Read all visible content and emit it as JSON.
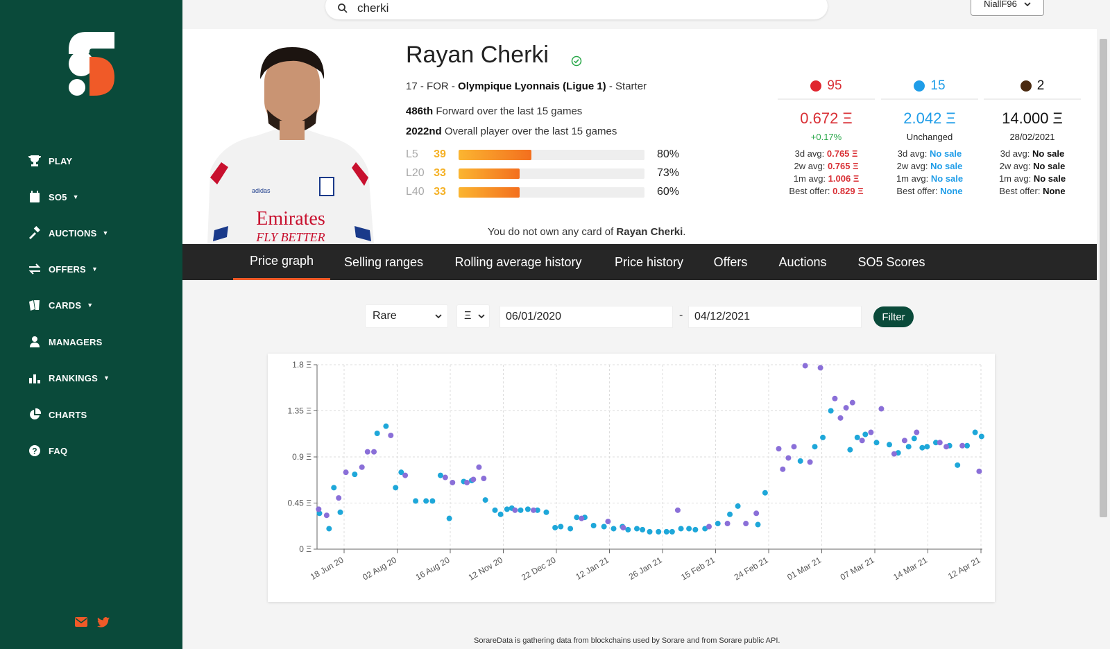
{
  "sidebar": {
    "items": [
      {
        "label": "PLAY",
        "icon": "trophy-icon",
        "has_caret": false
      },
      {
        "label": "SO5",
        "icon": "calendar-icon",
        "has_caret": true
      },
      {
        "label": "AUCTIONS",
        "icon": "gavel-icon",
        "has_caret": true
      },
      {
        "label": "OFFERS",
        "icon": "swap-icon",
        "has_caret": true
      },
      {
        "label": "CARDS",
        "icon": "cards-icon",
        "has_caret": true
      },
      {
        "label": "MANAGERS",
        "icon": "user-icon",
        "has_caret": false
      },
      {
        "label": "RANKINGS",
        "icon": "bar-chart-icon",
        "has_caret": true
      },
      {
        "label": "CHARTS",
        "icon": "pie-chart-icon",
        "has_caret": false
      },
      {
        "label": "FAQ",
        "icon": "question-icon",
        "has_caret": false
      }
    ],
    "brand_colors": {
      "green": "#0a4a3a",
      "orange": "#f05a28"
    }
  },
  "search": {
    "value": "cherki"
  },
  "user": {
    "name": "NiallF96"
  },
  "player": {
    "name": "Rayan Cherki",
    "age": "17",
    "position": "FOR",
    "club": "Olympique Lyonnais (Ligue 1)",
    "status": "Starter",
    "forward_rank": "486th",
    "forward_rank_text": "Forward over the last 15 games",
    "overall_rank": "2022nd",
    "overall_rank_text": "Overall player over the last 15 games",
    "scores": [
      {
        "label": "L5",
        "value": "39",
        "pct": "80%",
        "fill": 0.39
      },
      {
        "label": "L20",
        "value": "33",
        "pct": "73%",
        "fill": 0.33
      },
      {
        "label": "L40",
        "value": "33",
        "pct": "60%",
        "fill": 0.33
      }
    ],
    "ownership_prefix": "You do not own any card of",
    "ownership_name": "Rayan Cherki"
  },
  "stats": [
    {
      "count": "95",
      "dot_color": "#e0252f",
      "price": "0.672 Ξ",
      "price_color": "#d93036",
      "change": "+0.17%",
      "change_color": "#2aa84a",
      "avg3d_label": "3d avg:",
      "avg3d": "0.765 Ξ",
      "avg2w_label": "2w avg:",
      "avg2w": "0.765 Ξ",
      "avg1m_label": "1m avg:",
      "avg1m": "1.006 Ξ",
      "best_label": "Best offer:",
      "best": "0.829 Ξ",
      "value_color": "#d93036"
    },
    {
      "count": "15",
      "dot_color": "#1f9de8",
      "price": "2.042 Ξ",
      "price_color": "#1f9de8",
      "change": "Unchanged",
      "change_color": "#222",
      "avg3d_label": "3d avg:",
      "avg3d": "No sale",
      "avg2w_label": "2w avg:",
      "avg2w": "No sale",
      "avg1m_label": "1m avg:",
      "avg1m": "No sale",
      "best_label": "Best offer:",
      "best": "None",
      "value_color": "#1f9de8"
    },
    {
      "count": "2",
      "dot_color": "#4a2a10",
      "price": "14.000 Ξ",
      "price_color": "#111",
      "change": "28/02/2021",
      "change_color": "#222",
      "avg3d_label": "3d avg:",
      "avg3d": "No sale",
      "avg2w_label": "2w avg:",
      "avg2w": "No sale",
      "avg1m_label": "1m avg:",
      "avg1m": "No sale",
      "best_label": "Best offer:",
      "best": "None",
      "value_color": "#111"
    }
  ],
  "tabs": [
    {
      "label": "Price graph",
      "active": true
    },
    {
      "label": "Selling ranges",
      "active": false
    },
    {
      "label": "Rolling average history",
      "active": false
    },
    {
      "label": "Price history",
      "active": false
    },
    {
      "label": "Offers",
      "active": false
    },
    {
      "label": "Auctions",
      "active": false
    },
    {
      "label": "SO5 Scores",
      "active": false
    }
  ],
  "filters": {
    "rarity": "Rare",
    "currency": "Ξ",
    "start_date": "06/01/2020",
    "end_date": "04/12/2021",
    "dash": "-",
    "button": "Filter"
  },
  "chart_data": {
    "type": "scatter",
    "title": "",
    "xlabel": "",
    "ylabel": "",
    "ylim": [
      0,
      1.8
    ],
    "y_ticks": [
      "0 Ξ",
      "0.45 Ξ",
      "0.9 Ξ",
      "1.35 Ξ",
      "1.8 Ξ"
    ],
    "y_tick_values": [
      0,
      0.45,
      0.9,
      1.35,
      1.8
    ],
    "x_ticks": [
      "18 Jun 20",
      "02 Aug 20",
      "16 Aug 20",
      "12 Nov 20",
      "22 Dec 20",
      "12 Jan 21",
      "26 Jan 21",
      "15 Feb 21",
      "24 Feb 21",
      "01 Mar 21",
      "07 Mar 21",
      "14 Mar 21",
      "12 Apr 21"
    ],
    "grid": true,
    "series": [
      {
        "color": "#1ea7d9",
        "points": [
          [
            0.3,
            0.35
          ],
          [
            1.5,
            0.2
          ],
          [
            2.1,
            0.6
          ],
          [
            2.9,
            0.36
          ],
          [
            4.7,
            0.73
          ],
          [
            7.5,
            1.13
          ],
          [
            8.6,
            1.2
          ],
          [
            9.8,
            0.6
          ],
          [
            10.5,
            0.75
          ],
          [
            12.3,
            0.47
          ],
          [
            13.6,
            0.47
          ],
          [
            14.4,
            0.47
          ],
          [
            15.4,
            0.72
          ],
          [
            16.5,
            0.3
          ],
          [
            18.3,
            0.66
          ],
          [
            19.3,
            0.67
          ],
          [
            21.0,
            0.48
          ],
          [
            22.2,
            0.38
          ],
          [
            22.9,
            0.34
          ],
          [
            23.7,
            0.39
          ],
          [
            24.3,
            0.4
          ],
          [
            25.4,
            0.38
          ],
          [
            26.3,
            0.39
          ],
          [
            27.5,
            0.38
          ],
          [
            28.6,
            0.36
          ],
          [
            29.7,
            0.21
          ],
          [
            30.4,
            0.22
          ],
          [
            31.6,
            0.2
          ],
          [
            32.4,
            0.31
          ],
          [
            33.4,
            0.31
          ],
          [
            34.5,
            0.23
          ],
          [
            35.8,
            0.22
          ],
          [
            37.0,
            0.2
          ],
          [
            38.1,
            0.22
          ],
          [
            38.8,
            0.19
          ],
          [
            39.9,
            0.2
          ],
          [
            40.6,
            0.19
          ],
          [
            41.5,
            0.17
          ],
          [
            42.6,
            0.17
          ],
          [
            43.6,
            0.17
          ],
          [
            44.3,
            0.17
          ],
          [
            45.4,
            0.2
          ],
          [
            46.4,
            0.2
          ],
          [
            47.2,
            0.19
          ],
          [
            48.4,
            0.2
          ],
          [
            50.0,
            0.25
          ],
          [
            51.5,
            0.34
          ],
          [
            52.5,
            0.42
          ],
          [
            55.0,
            0.24
          ],
          [
            55.9,
            0.55
          ],
          [
            60.3,
            0.86
          ],
          [
            62.1,
            1.0
          ],
          [
            63.1,
            1.09
          ],
          [
            64.1,
            1.35
          ],
          [
            66.5,
            0.97
          ],
          [
            67.4,
            1.09
          ],
          [
            68.4,
            1.12
          ],
          [
            69.8,
            1.04
          ],
          [
            71.4,
            1.02
          ],
          [
            72.5,
            0.94
          ],
          [
            73.8,
            1.0
          ],
          [
            74.5,
            1.08
          ],
          [
            75.5,
            0.99
          ],
          [
            76.1,
            1.0
          ],
          [
            77.2,
            1.04
          ],
          [
            78.9,
            1.01
          ],
          [
            79.9,
            0.82
          ],
          [
            81.1,
            1.01
          ],
          [
            82.1,
            1.14
          ],
          [
            82.9,
            1.1
          ]
        ]
      },
      {
        "color": "#8a6fd8",
        "points": [
          [
            0.2,
            0.39
          ],
          [
            1.2,
            0.33
          ],
          [
            2.7,
            0.5
          ],
          [
            3.6,
            0.75
          ],
          [
            5.6,
            0.8
          ],
          [
            6.3,
            0.95
          ],
          [
            7.1,
            0.95
          ],
          [
            9.2,
            1.11
          ],
          [
            11.0,
            0.72
          ],
          [
            16.0,
            0.7
          ],
          [
            16.9,
            0.65
          ],
          [
            18.7,
            0.65
          ],
          [
            19.5,
            0.68
          ],
          [
            20.2,
            0.8
          ],
          [
            20.8,
            0.69
          ],
          [
            24.7,
            0.38
          ],
          [
            27.0,
            0.38
          ],
          [
            33.0,
            0.3
          ],
          [
            36.3,
            0.27
          ],
          [
            38.2,
            0.21
          ],
          [
            45.0,
            0.38
          ],
          [
            48.9,
            0.22
          ],
          [
            51.2,
            0.25
          ],
          [
            53.5,
            0.25
          ],
          [
            54.8,
            0.35
          ],
          [
            57.6,
            0.98
          ],
          [
            58.1,
            0.78
          ],
          [
            58.8,
            0.89
          ],
          [
            59.5,
            1.0
          ],
          [
            60.9,
            1.79
          ],
          [
            61.5,
            0.85
          ],
          [
            62.8,
            1.77
          ],
          [
            64.6,
            1.47
          ],
          [
            65.3,
            1.28
          ],
          [
            66.0,
            1.38
          ],
          [
            66.8,
            1.43
          ],
          [
            68.0,
            1.06
          ],
          [
            69.1,
            1.14
          ],
          [
            70.4,
            1.37
          ],
          [
            72.0,
            0.93
          ],
          [
            73.3,
            1.06
          ],
          [
            74.8,
            1.14
          ],
          [
            77.7,
            1.04
          ],
          [
            78.5,
            1.0
          ],
          [
            80.5,
            1.01
          ],
          [
            82.6,
            0.76
          ]
        ]
      }
    ],
    "x_range": [
      0,
      83
    ]
  },
  "footer": "SorareData is gathering data from blockchains used by Sorare and from Sorare public API."
}
